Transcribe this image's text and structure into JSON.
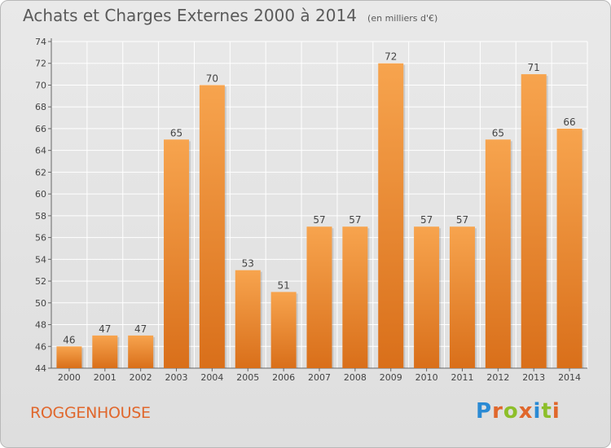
{
  "header": {
    "title": "Achats et Charges Externes 2000 à 2014",
    "subtitle": "(en milliers d'€)"
  },
  "footer": {
    "place": "ROGGENHOUSE",
    "logo_text": "Proxiti"
  },
  "colors": {
    "bar_light": "#f7a44e",
    "bar_dark": "#d96f1a",
    "place_text": "#e0672c",
    "logo_letters": [
      "#2a8ad4",
      "#e0672c",
      "#8dbf2a",
      "#e0672c",
      "#2a8ad4",
      "#8dbf2a",
      "#e0672c"
    ]
  },
  "chart_data": {
    "type": "bar",
    "categories": [
      "2000",
      "2001",
      "2002",
      "2003",
      "2004",
      "2005",
      "2006",
      "2007",
      "2008",
      "2009",
      "2010",
      "2011",
      "2012",
      "2013",
      "2014"
    ],
    "values": [
      46,
      47,
      47,
      65,
      70,
      53,
      51,
      57,
      57,
      72,
      57,
      57,
      65,
      71,
      66
    ],
    "ylim": [
      44,
      74
    ],
    "yticks": [
      44,
      46,
      48,
      50,
      52,
      54,
      56,
      58,
      60,
      62,
      64,
      66,
      68,
      70,
      72,
      74
    ],
    "grid": true,
    "data_labels": true
  }
}
